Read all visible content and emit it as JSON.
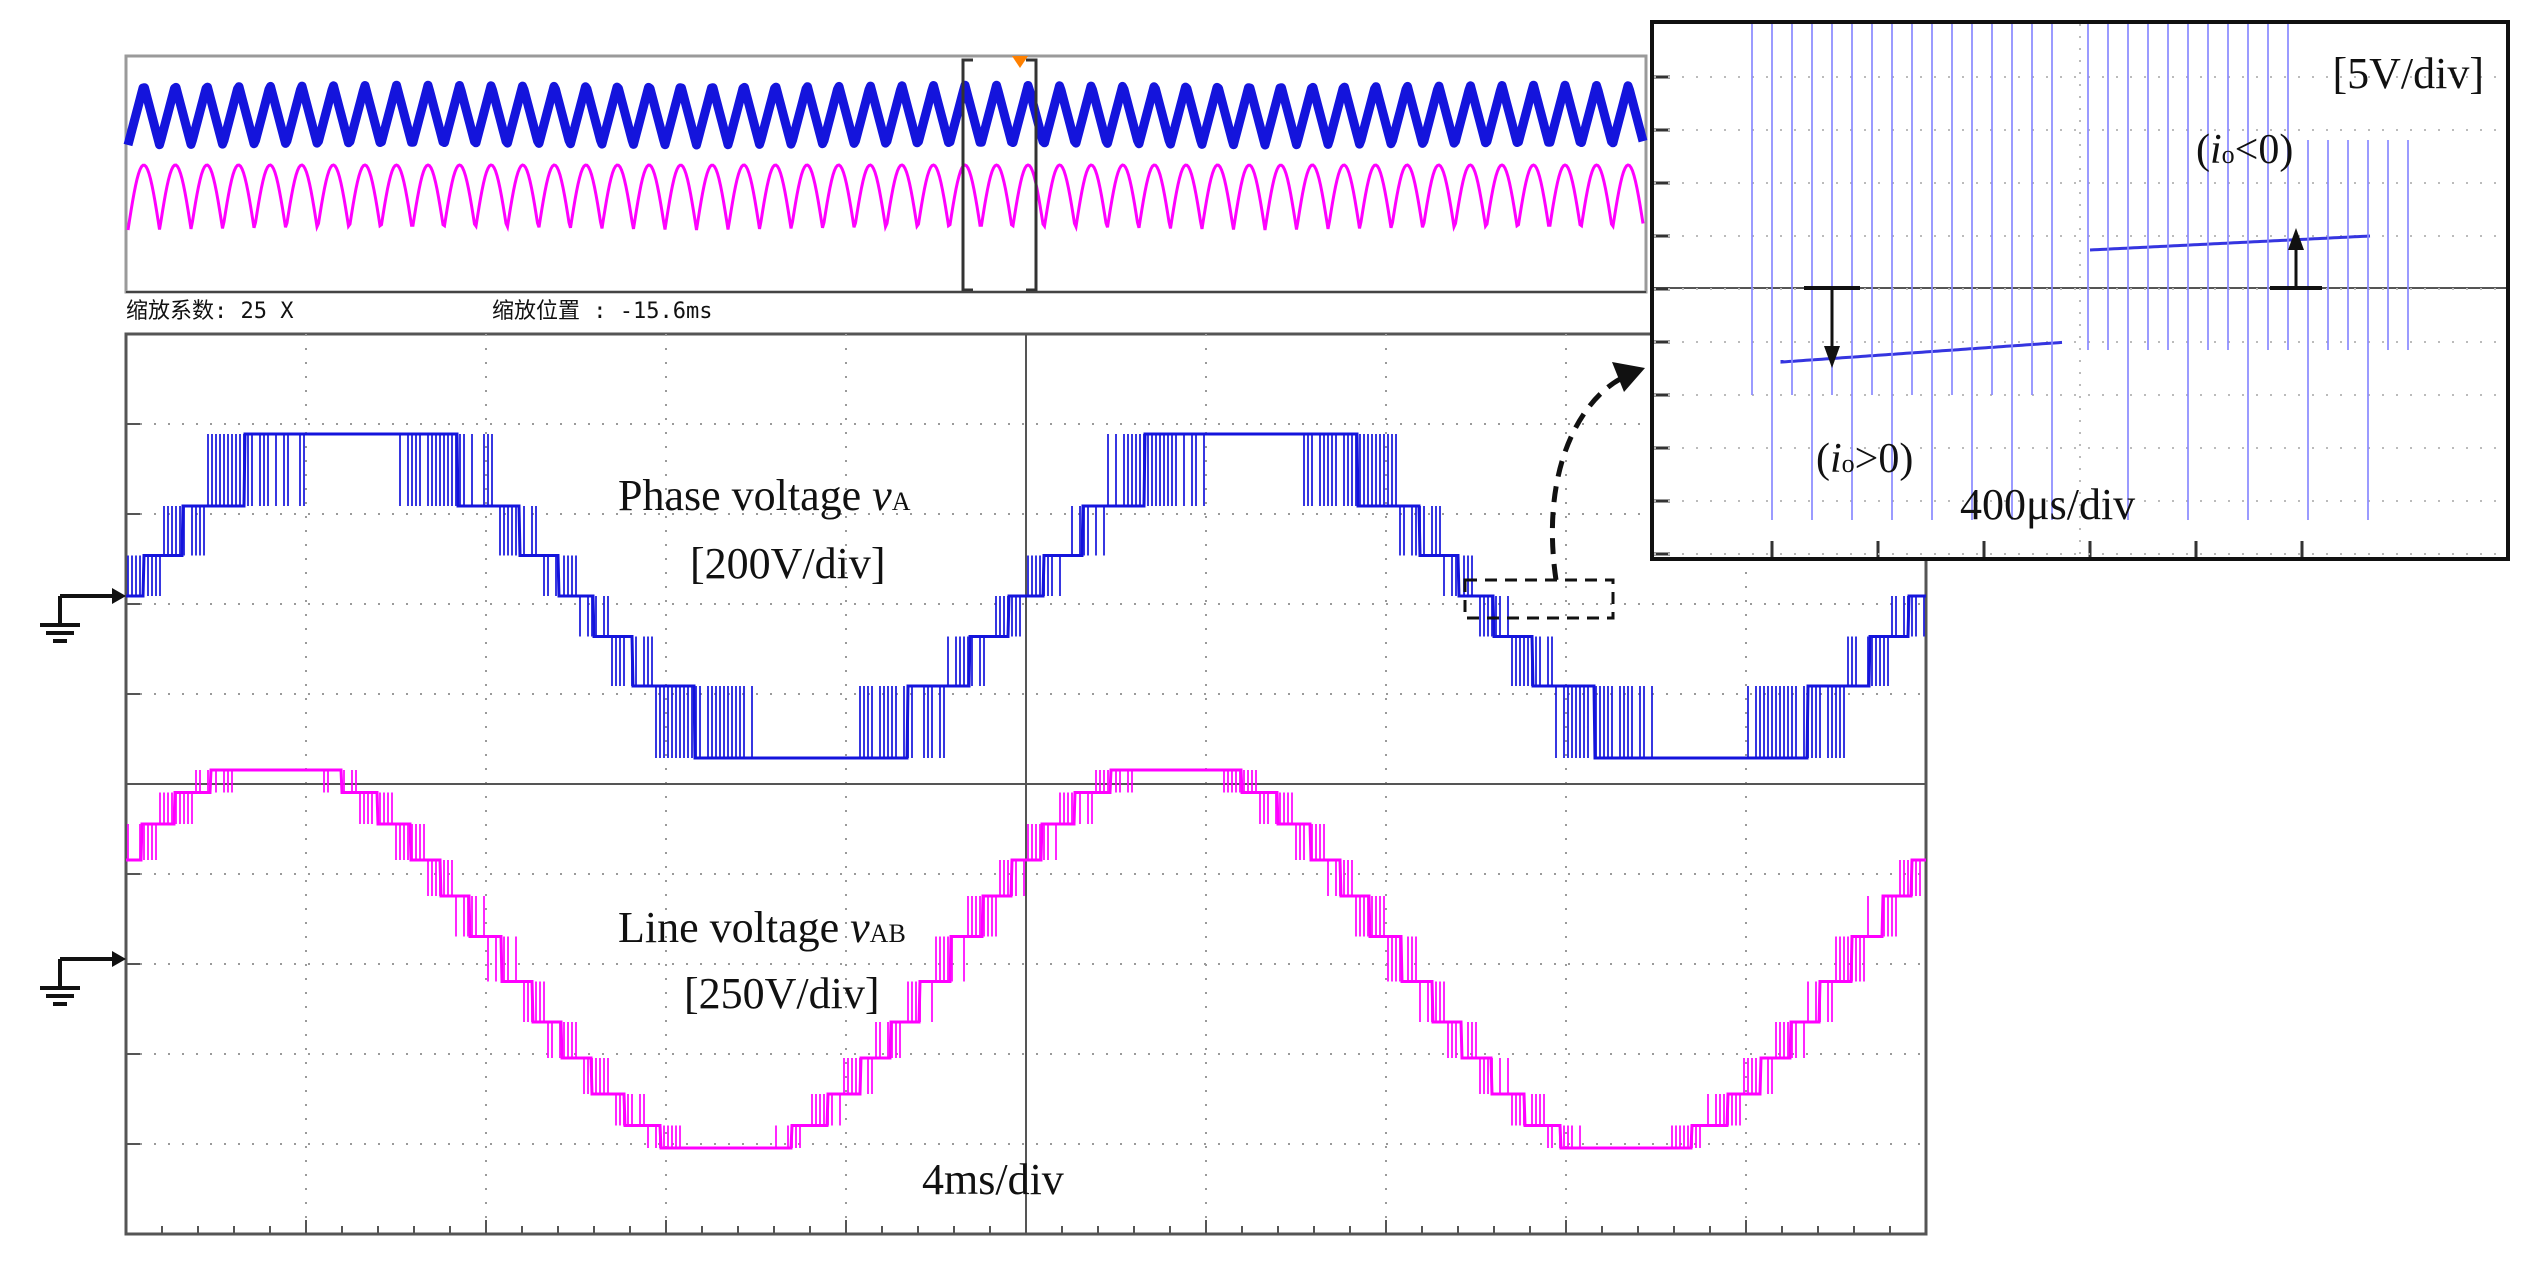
{
  "zoom_bar": {
    "zoom_factor_label": "缩放系数: 25 X",
    "zoom_position_label": "缩放位置 : -15.6ms"
  },
  "main_plot": {
    "phase_label_prefix": "Phase voltage ",
    "phase_var": "v",
    "phase_sub": "A",
    "phase_scale": "[200V/div]",
    "line_label_prefix": "Line voltage ",
    "line_var": "v",
    "line_sub": "AB",
    "line_scale": "[250V/div]",
    "time_scale": "4ms/div"
  },
  "inset": {
    "scale": "[5V/div]",
    "time_scale": "400μs/div",
    "neg_label_open": "(",
    "neg_label_var": "i",
    "neg_label_sub": "o",
    "neg_label_close": "<0)",
    "pos_label_open": "(",
    "pos_label_var": "i",
    "pos_label_sub": "o",
    "pos_label_close": ">0)"
  },
  "chart_data": {
    "type": "line",
    "title": "",
    "xlabel": "4ms/div",
    "grid": true,
    "x_divisions": 10,
    "y_divisions": 10,
    "fundamental_period_divisions": 5,
    "series": [
      {
        "name": "Phase voltage vA",
        "scale": "200V/div",
        "color": "#1414dc",
        "waveform": "stepped multilevel sine",
        "peak_divisions": 1.9,
        "step_levels_divisions": [
          -1.8,
          -1.0,
          -0.45,
          0,
          0.45,
          1.0,
          1.8
        ]
      },
      {
        "name": "Line voltage vAB",
        "scale": "250V/div",
        "color": "#ff00ff",
        "waveform": "stepped multilevel sine",
        "peak_divisions": 2.2,
        "step_levels_divisions": [
          -2.1,
          -1.85,
          -1.5,
          -1.1,
          -0.7,
          -0.25,
          0.25,
          0.7,
          1.1,
          1.5,
          1.85,
          2.1
        ]
      }
    ],
    "inset": {
      "scale": "5V/div",
      "time_scale": "400μs/div",
      "color": "#8c8cff",
      "annotations": [
        "(io>0)",
        "(io<0)"
      ]
    }
  },
  "colors": {
    "phase": "#1414dc",
    "line": "#ff00ff",
    "inset_trace": "#8a8aff",
    "grid": "#9a9a9a"
  }
}
